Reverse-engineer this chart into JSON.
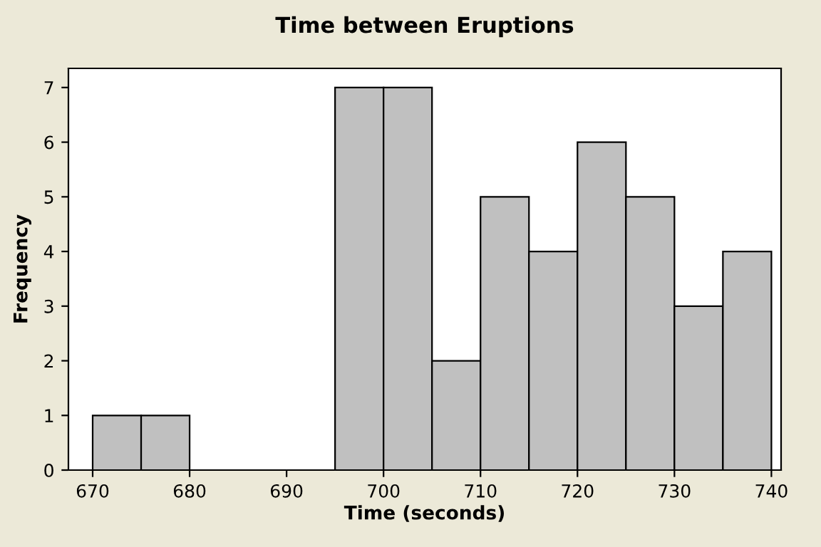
{
  "chart_data": {
    "type": "histogram",
    "title": "Time between Eruptions",
    "xlabel": "Time (seconds)",
    "ylabel": "Frequency",
    "bins": [
      670,
      675,
      680,
      685,
      690,
      695,
      700,
      705,
      710,
      715,
      720,
      725,
      730,
      735,
      740
    ],
    "values": [
      1,
      1,
      0,
      0,
      0,
      7,
      7,
      2,
      5,
      4,
      6,
      5,
      3,
      4
    ],
    "color": "#c0c0c0",
    "xlim": [
      667.5,
      741
    ],
    "xticks": [
      670,
      680,
      690,
      700,
      710,
      720,
      730,
      740
    ],
    "ylim": [
      0,
      7.35
    ],
    "yticks": [
      0,
      1,
      2,
      3,
      4,
      5,
      6,
      7
    ],
    "grid": false
  }
}
